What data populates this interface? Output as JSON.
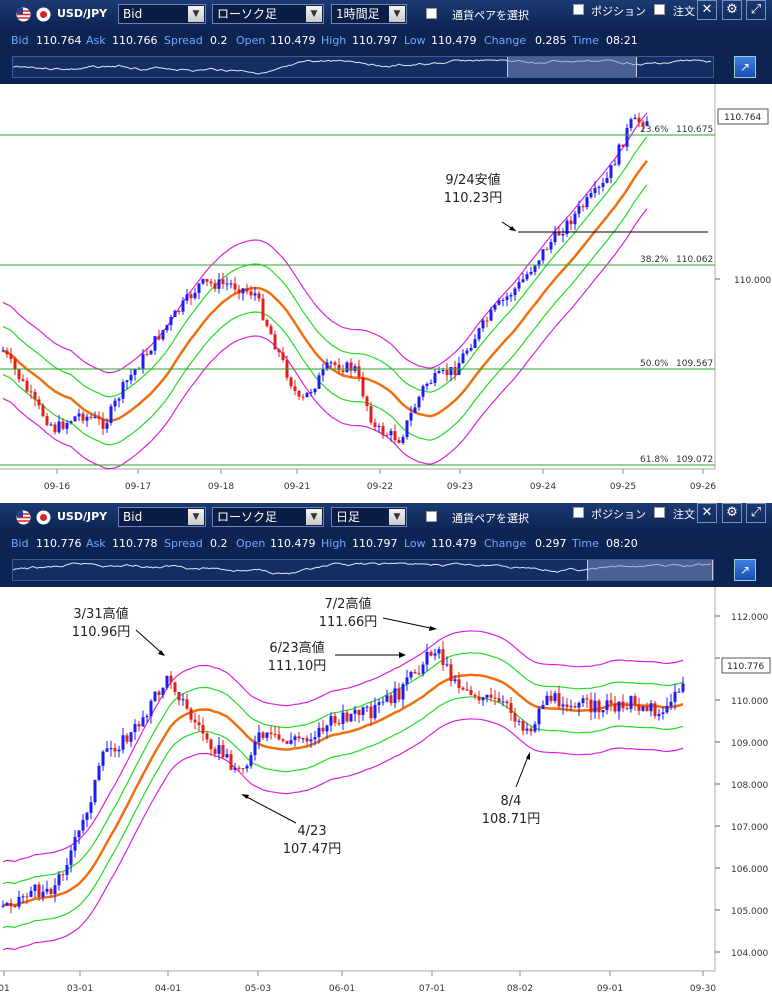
{
  "top": {
    "toolbar": {
      "pair": "USD/JPY",
      "price_type": "Bid",
      "chart_type": "ローソク足",
      "timeframe": "1時間足",
      "select_pair_label": "通貨ペアを選択",
      "position_label": "ポジション",
      "order_label": "注文"
    },
    "quote": {
      "bid_label": "Bid",
      "bid": "110.764",
      "ask_label": "Ask",
      "ask": "110.766",
      "spread_label": "Spread",
      "spread": "0.2",
      "open_label": "Open",
      "open": "110.479",
      "high_label": "High",
      "high": "110.797",
      "low_label": "Low",
      "low": "110.479",
      "change_label": "Change",
      "change": "0.285",
      "time_label": "Time",
      "time": "08:21"
    },
    "chart": {
      "price_axis": [
        "110.000"
      ],
      "current_price": "110.764",
      "dates": [
        "09-16",
        "09-17",
        "09-18",
        "09-21",
        "09-22",
        "09-23",
        "09-24",
        "09-25",
        "09-26"
      ],
      "fib_levels": [
        {
          "label": "23.6%",
          "value": "110.675"
        },
        {
          "label": "38.2%",
          "value": "110.062"
        },
        {
          "label": "50.0%",
          "value": "109.567"
        },
        {
          "label": "61.8%",
          "value": "109.072"
        }
      ],
      "annotation": {
        "line1": "9/24安値",
        "line2": "110.23円"
      }
    }
  },
  "bottom": {
    "toolbar": {
      "pair": "USD/JPY",
      "price_type": "Bid",
      "chart_type": "ローソク足",
      "timeframe": "日足",
      "select_pair_label": "通貨ペアを選択",
      "position_label": "ポジション",
      "order_label": "注文"
    },
    "quote": {
      "bid_label": "Bid",
      "bid": "110.776",
      "ask_label": "Ask",
      "ask": "110.778",
      "spread_label": "Spread",
      "spread": "0.2",
      "open_label": "Open",
      "open": "110.479",
      "high_label": "High",
      "high": "110.797",
      "low_label": "Low",
      "low": "110.479",
      "change_label": "Change",
      "change": "0.297",
      "time_label": "Time",
      "time": "08:20"
    },
    "chart": {
      "price_axis": [
        "112.000",
        "111.000",
        "110.000",
        "109.000",
        "108.000",
        "107.000",
        "106.000",
        "105.000",
        "104.000"
      ],
      "current_price": "110.776",
      "dates": [
        "01",
        "03-01",
        "04-01",
        "05-03",
        "06-01",
        "07-01",
        "08-02",
        "09-01",
        "09-30"
      ],
      "annotations": [
        {
          "line1": "3/31高値",
          "line2": "110.96円"
        },
        {
          "line1": "7/2高値",
          "line2": "111.66円"
        },
        {
          "line1": "6/23高値",
          "line2": "111.10円"
        },
        {
          "line1": "4/23",
          "line2": "107.47円"
        },
        {
          "line1": "8/4",
          "line2": "108.71円"
        }
      ]
    }
  },
  "colors": {
    "toolbar_bg": "#0d2453",
    "bull": "#1d1df0",
    "bear": "#e0201c",
    "ma": "#f07010",
    "band_inner": "#22dd22",
    "band_outer": "#dd22dd",
    "fib_line": "#2aa52a"
  }
}
